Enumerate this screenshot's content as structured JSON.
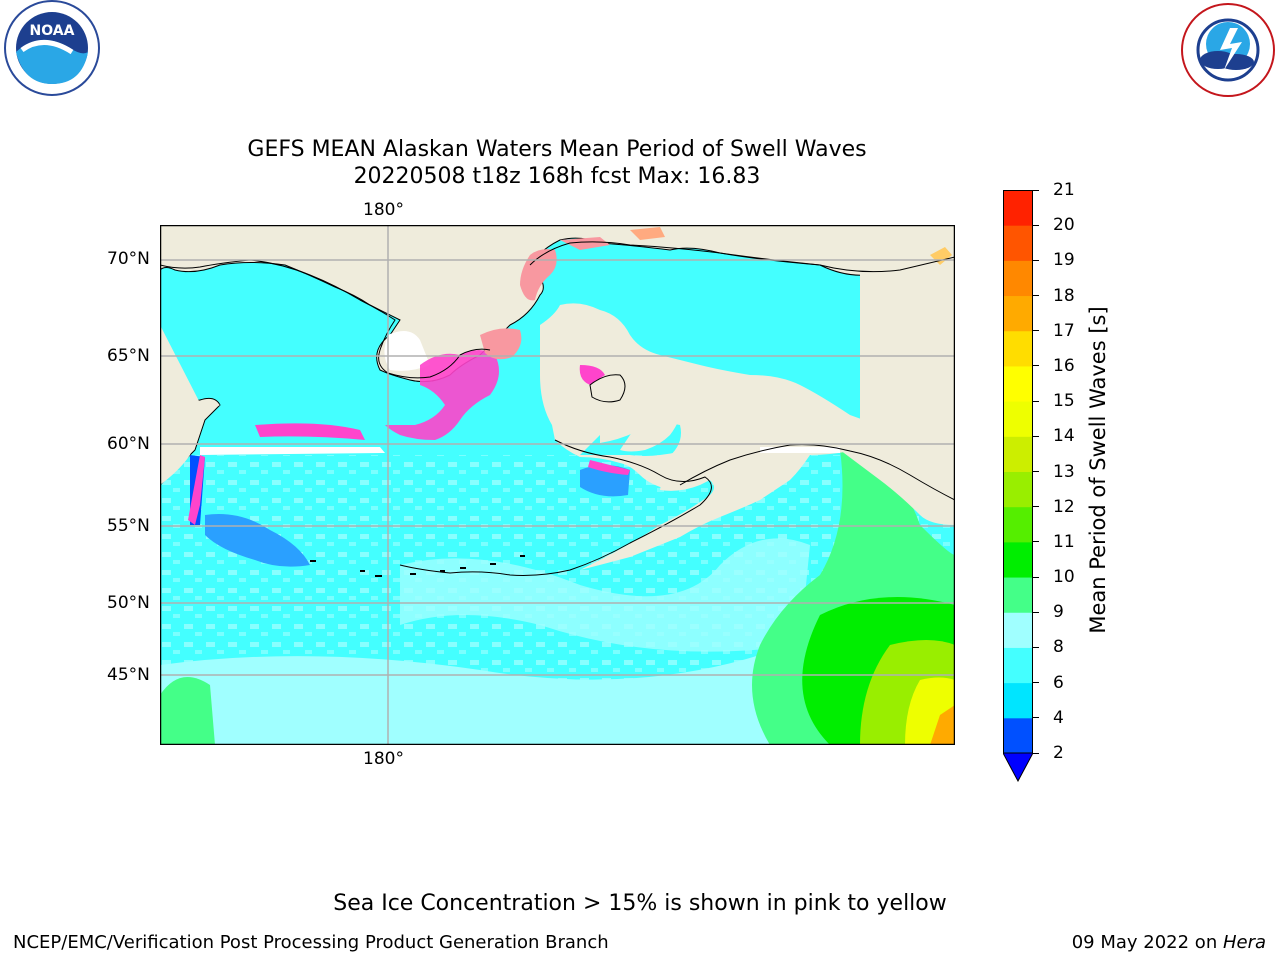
{
  "title": {
    "line1": "GEFS MEAN Alaskan Waters Mean Period of Swell Waves",
    "line2": "20220508 t18z 168h fcst   Max: 16.83"
  },
  "logos": {
    "left": {
      "icon": "noaa-logo",
      "text": "NOAA",
      "ring_text": "NATIONAL OCEANIC AND ATMOSPHERIC ADMINISTRATION · U.S. DEPARTMENT OF COMMERCE"
    },
    "right": {
      "icon": "nws-logo",
      "ring_text": "NATIONAL WEATHER SERVICE"
    }
  },
  "map": {
    "lon_label_top": "180°",
    "lon_label_bottom": "180°",
    "lat_labels": [
      "70°N",
      "65°N",
      "60°N",
      "55°N",
      "50°N",
      "45°N"
    ],
    "colors": {
      "land": "#efecdc",
      "coast": "#000000",
      "grid": "#b0b0b0",
      "ice_pink": "#ff44cc",
      "ice_salmon": "#f898a0"
    }
  },
  "colorbar": {
    "label": "Mean Period of Swell Waves [s]",
    "ticks": [
      "2",
      "4",
      "6",
      "8",
      "9",
      "10",
      "11",
      "12",
      "13",
      "14",
      "15",
      "16",
      "17",
      "18",
      "19",
      "20",
      "21"
    ],
    "colors": [
      "#0050ff",
      "#00e5ff",
      "#44ffff",
      "#a0ffff",
      "#44ff88",
      "#00ee00",
      "#55ee00",
      "#99ee00",
      "#ccee00",
      "#eeff00",
      "#ffff00",
      "#ffdd00",
      "#ffaa00",
      "#ff8800",
      "#ff5500",
      "#ff2200"
    ],
    "extend_color": "#0000ff"
  },
  "note": "Sea Ice Concentration > 15% is shown in pink to yellow",
  "footer": {
    "left": "NCEP/EMC/Verification Post Processing Product Generation Branch",
    "date": "09 May 2022 on ",
    "machine": "Hera"
  }
}
